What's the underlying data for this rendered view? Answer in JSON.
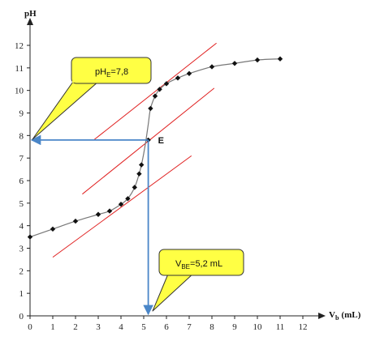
{
  "chart_data": {
    "type": "scatter",
    "xlabel": "V",
    "xlabel_sub": "b",
    "xlabel_unit": "(mL)",
    "ylabel": "pH",
    "xlim": [
      0,
      12
    ],
    "ylim": [
      0,
      12
    ],
    "x_ticks": [
      0,
      1,
      2,
      3,
      4,
      5,
      6,
      7,
      8,
      9,
      10,
      11,
      12
    ],
    "y_ticks": [
      0,
      1,
      2,
      3,
      4,
      5,
      6,
      7,
      8,
      9,
      10,
      11,
      12
    ],
    "grid": false,
    "series": [
      {
        "values": [
          {
            "x": 0,
            "y": 3.5
          },
          {
            "x": 1,
            "y": 3.85
          },
          {
            "x": 2,
            "y": 4.2
          },
          {
            "x": 3,
            "y": 4.5
          },
          {
            "x": 3.5,
            "y": 4.65
          },
          {
            "x": 4,
            "y": 4.95
          },
          {
            "x": 4.3,
            "y": 5.2
          },
          {
            "x": 4.6,
            "y": 5.7
          },
          {
            "x": 4.8,
            "y": 6.3
          },
          {
            "x": 4.9,
            "y": 6.7
          },
          {
            "x": 5.3,
            "y": 9.2
          },
          {
            "x": 5.5,
            "y": 9.75
          },
          {
            "x": 5.7,
            "y": 10.05
          },
          {
            "x": 6,
            "y": 10.3
          },
          {
            "x": 6.5,
            "y": 10.55
          },
          {
            "x": 7,
            "y": 10.75
          },
          {
            "x": 8,
            "y": 11.05
          },
          {
            "x": 9,
            "y": 11.2
          },
          {
            "x": 10,
            "y": 11.35
          },
          {
            "x": 11,
            "y": 11.4
          }
        ]
      }
    ],
    "curve": [
      [
        0,
        3.5
      ],
      [
        1,
        3.85
      ],
      [
        2,
        4.2
      ],
      [
        3,
        4.5
      ],
      [
        3.5,
        4.65
      ],
      [
        4,
        4.95
      ],
      [
        4.3,
        5.2
      ],
      [
        4.6,
        5.7
      ],
      [
        4.8,
        6.3
      ],
      [
        4.9,
        6.7
      ],
      [
        5.0,
        7.2
      ],
      [
        5.1,
        7.8
      ],
      [
        5.2,
        8.5
      ],
      [
        5.3,
        9.2
      ],
      [
        5.5,
        9.75
      ],
      [
        5.7,
        10.05
      ],
      [
        6,
        10.3
      ],
      [
        6.5,
        10.55
      ],
      [
        7,
        10.75
      ],
      [
        8,
        11.05
      ],
      [
        9,
        11.2
      ],
      [
        10,
        11.35
      ],
      [
        11,
        11.4
      ]
    ],
    "tangents": [
      {
        "from": [
          2.8,
          7.8
        ],
        "to": [
          8.2,
          12.1
        ]
      },
      {
        "from": [
          2.3,
          5.4
        ],
        "to": [
          8.1,
          10.1
        ]
      },
      {
        "from": [
          1.0,
          2.6
        ],
        "to": [
          7.1,
          7.1
        ]
      }
    ],
    "equivalence": {
      "x": 5.2,
      "y": 7.8,
      "label": "E"
    },
    "annotations": [
      {
        "text_main": "pH",
        "text_sub": "E",
        "text_rest": "=7,8"
      },
      {
        "text_main": "V",
        "text_sub": "BE",
        "text_rest": "=5,2 mL"
      }
    ],
    "colors": {
      "curve": "#777777",
      "points": "#111111",
      "tangent": "#e02020",
      "guide_arrow": "#4a86c8",
      "callout_fill": "#ffff44",
      "callout_stroke": "#333333",
      "axis": "#222222"
    }
  }
}
